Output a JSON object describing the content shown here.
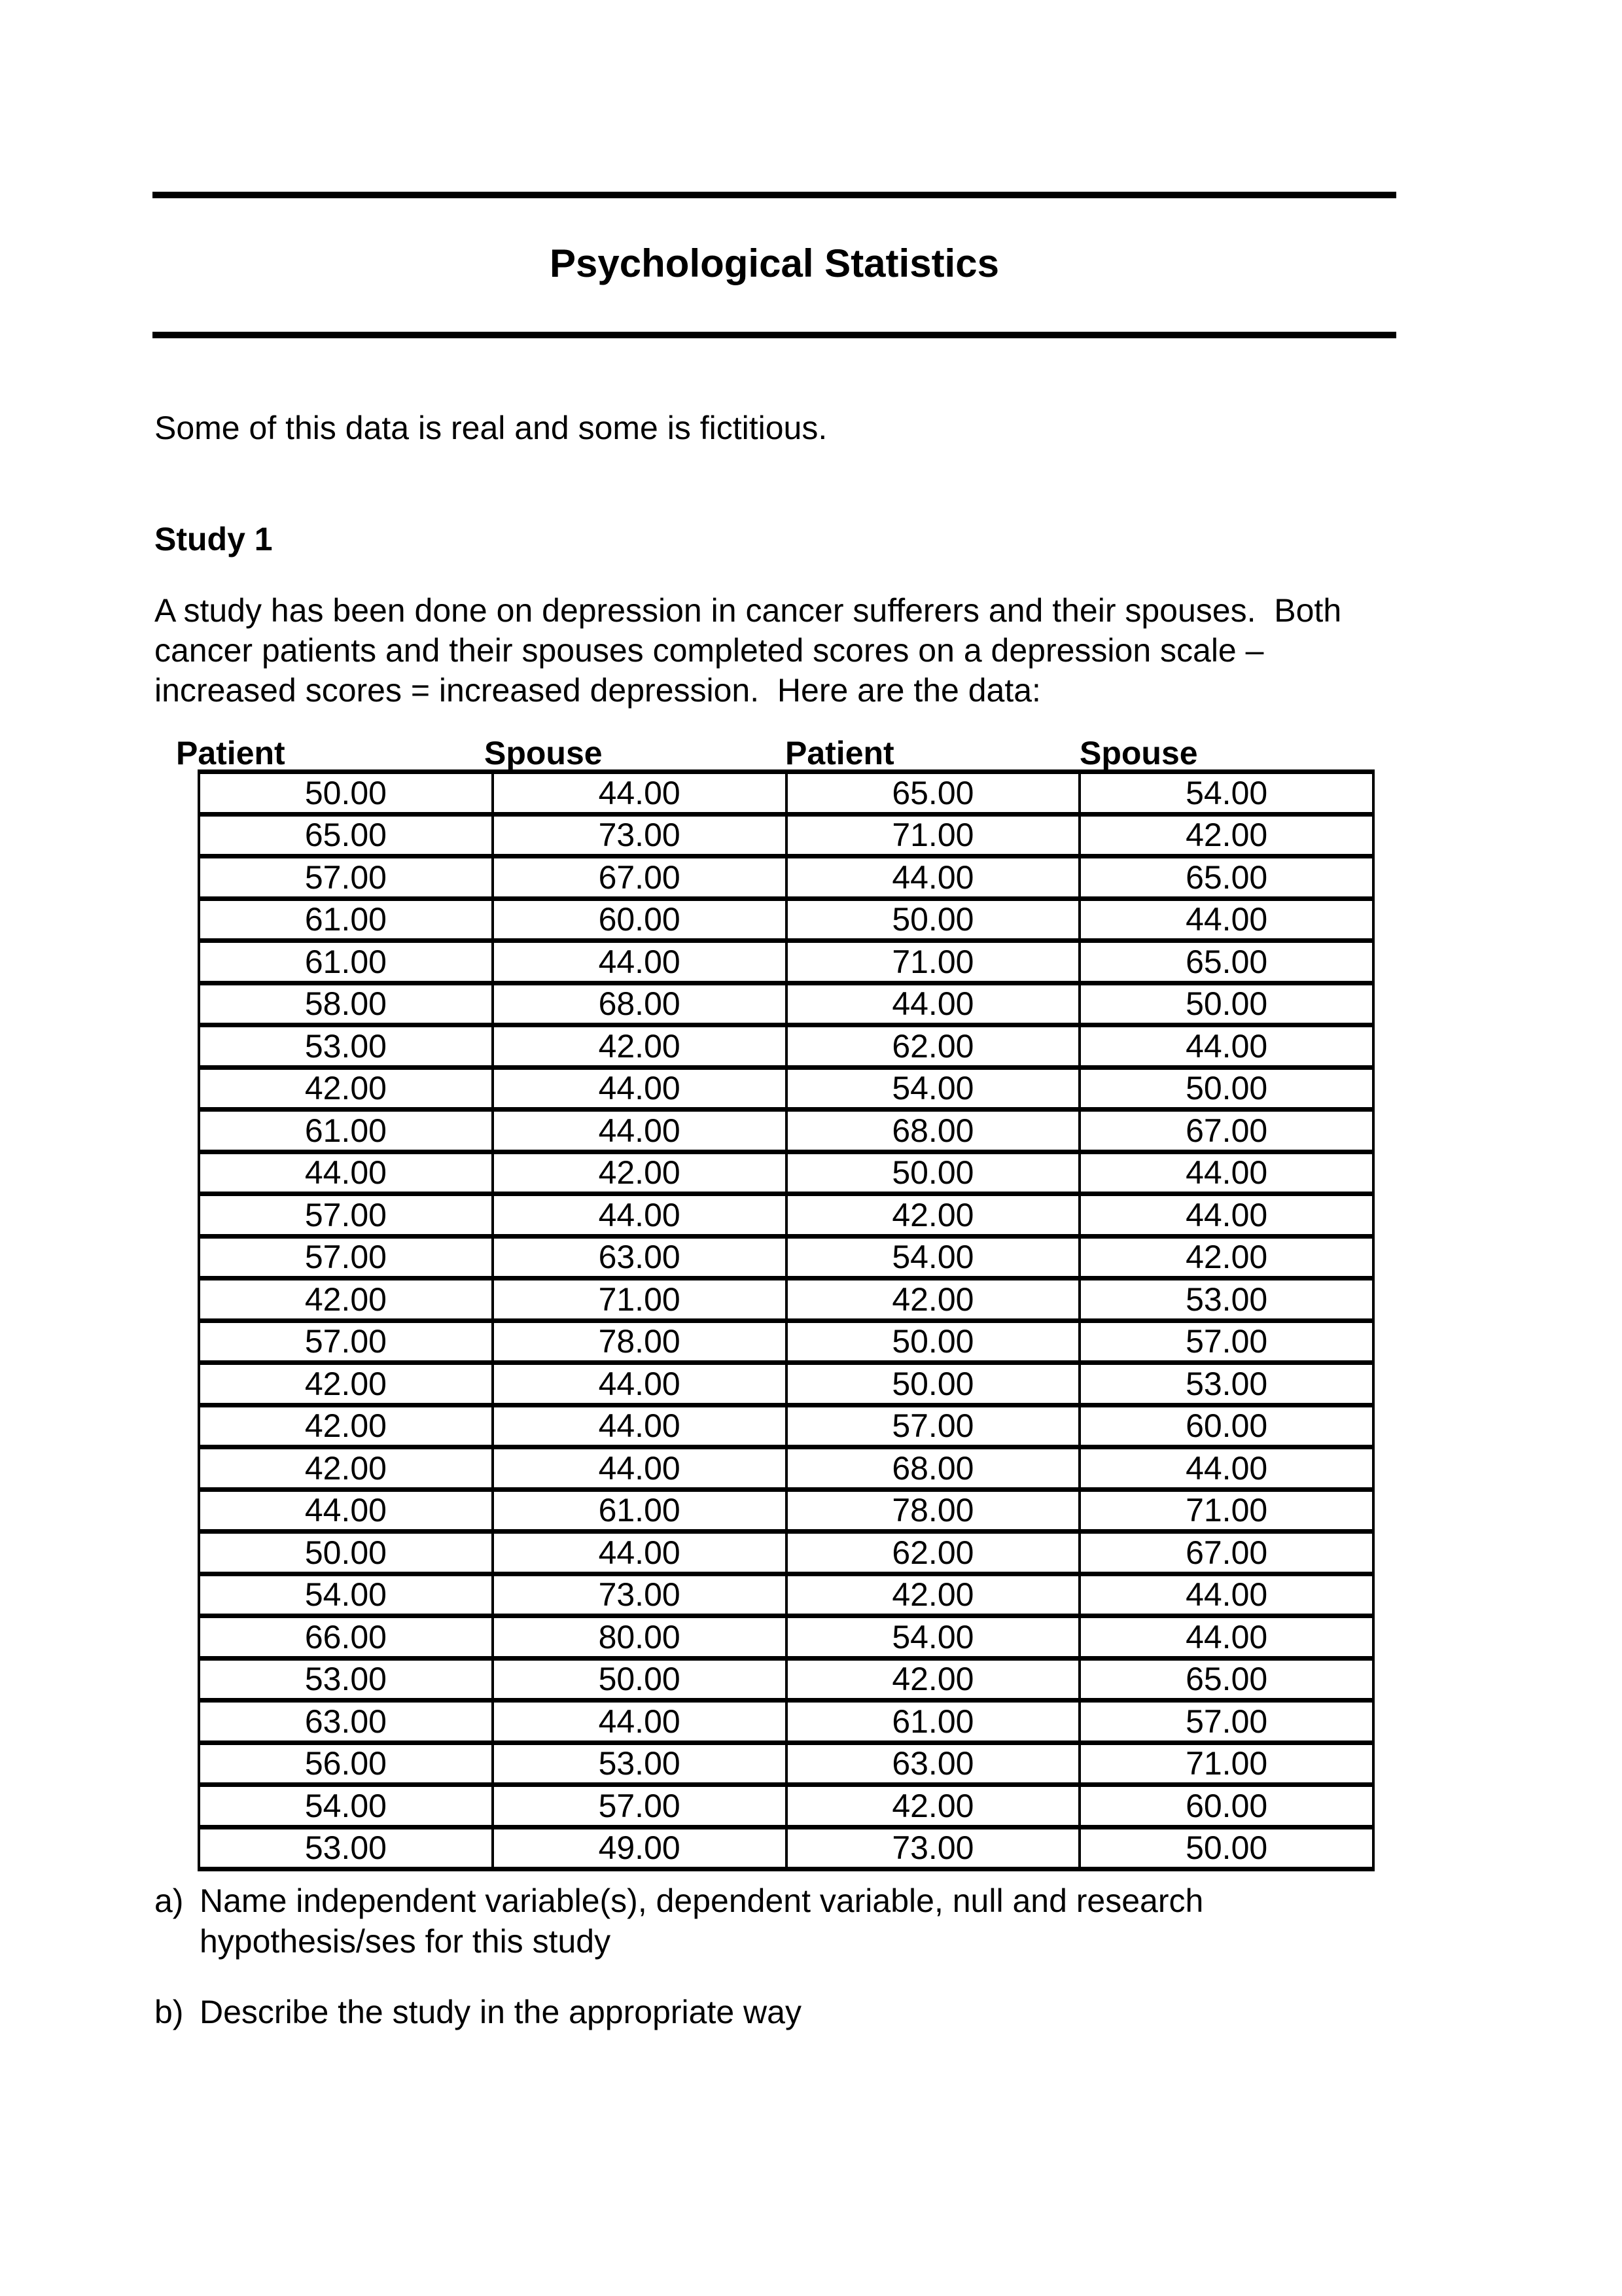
{
  "doc": {
    "title": "Psychological Statistics",
    "intro": "Some of this data is real and some is fictitious.",
    "study_heading": "Study 1",
    "study_description_lines": [
      "A study has been done on depression in cancer sufferers and their spouses.  Both",
      "cancer patients and their spouses completed scores on a depression scale –",
      "increased scores = increased depression.  Here are the data:"
    ]
  },
  "table": {
    "headers": [
      "Patient",
      "Spouse",
      "Patient",
      "Spouse"
    ],
    "rows": [
      [
        "50.00",
        "44.00",
        "65.00",
        "54.00"
      ],
      [
        "65.00",
        "73.00",
        "71.00",
        "42.00"
      ],
      [
        "57.00",
        "67.00",
        "44.00",
        "65.00"
      ],
      [
        "61.00",
        "60.00",
        "50.00",
        "44.00"
      ],
      [
        "61.00",
        "44.00",
        "71.00",
        "65.00"
      ],
      [
        "58.00",
        "68.00",
        "44.00",
        "50.00"
      ],
      [
        "53.00",
        "42.00",
        "62.00",
        "44.00"
      ],
      [
        "42.00",
        "44.00",
        "54.00",
        "50.00"
      ],
      [
        "61.00",
        "44.00",
        "68.00",
        "67.00"
      ],
      [
        "44.00",
        "42.00",
        "50.00",
        "44.00"
      ],
      [
        "57.00",
        "44.00",
        "42.00",
        "44.00"
      ],
      [
        "57.00",
        "63.00",
        "54.00",
        "42.00"
      ],
      [
        "42.00",
        "71.00",
        "42.00",
        "53.00"
      ],
      [
        "57.00",
        "78.00",
        "50.00",
        "57.00"
      ],
      [
        "42.00",
        "44.00",
        "50.00",
        "53.00"
      ],
      [
        "42.00",
        "44.00",
        "57.00",
        "60.00"
      ],
      [
        "42.00",
        "44.00",
        "68.00",
        "44.00"
      ],
      [
        "44.00",
        "61.00",
        "78.00",
        "71.00"
      ],
      [
        "50.00",
        "44.00",
        "62.00",
        "67.00"
      ],
      [
        "54.00",
        "73.00",
        "42.00",
        "44.00"
      ],
      [
        "66.00",
        "80.00",
        "54.00",
        "44.00"
      ],
      [
        "53.00",
        "50.00",
        "42.00",
        "65.00"
      ],
      [
        "63.00",
        "44.00",
        "61.00",
        "57.00"
      ],
      [
        "56.00",
        "53.00",
        "63.00",
        "71.00"
      ],
      [
        "54.00",
        "57.00",
        "42.00",
        "60.00"
      ],
      [
        "53.00",
        "49.00",
        "73.00",
        "50.00"
      ]
    ]
  },
  "questions": [
    {
      "label": "a)",
      "lines": [
        "Name independent variable(s), dependent variable, null and research",
        "hypothesis/ses for this study"
      ]
    },
    {
      "label": "b)",
      "lines": [
        "Describe the study in the appropriate way"
      ]
    }
  ]
}
